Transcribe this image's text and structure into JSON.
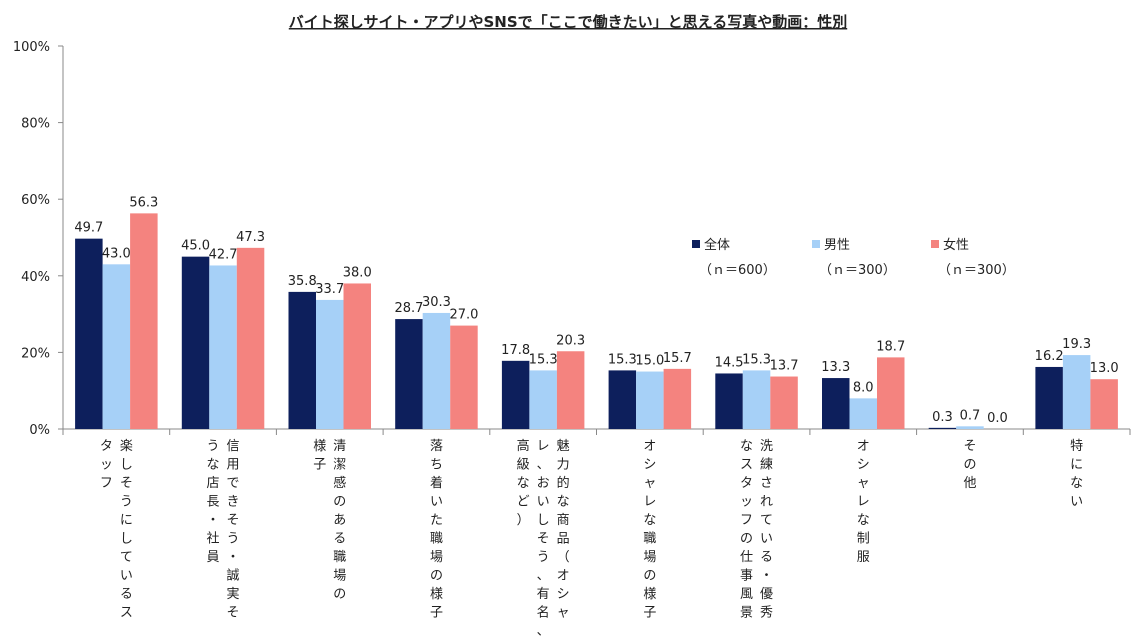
{
  "chart_data": {
    "type": "bar",
    "title": "バイト探しサイト・アプリやSNSで「ここで働きたい」と思える写真や動画：性別",
    "ylim": [
      0,
      100
    ],
    "y_ticks": [
      "0%",
      "20%",
      "40%",
      "60%",
      "80%",
      "100%"
    ],
    "xlabel": "",
    "ylabel": "",
    "categories": [
      [
        "楽しそうにしているス",
        "タッフ"
      ],
      [
        "信用できそう・誠実そ",
        "うな店長・社員"
      ],
      [
        "清潔感のある職場の",
        "様子"
      ],
      [
        "落ち着いた職場の様子"
      ],
      [
        "魅力的な商品（オシャ",
        "レ、おいしそう、有名、",
        "高級など）"
      ],
      [
        "オシャレな職場の様子"
      ],
      [
        "洗練されている・優秀",
        "なスタッフの仕事風景"
      ],
      [
        "オシャレな制服"
      ],
      [
        "その他"
      ],
      [
        "特にない"
      ]
    ],
    "series": [
      {
        "name": "全体",
        "n": "（ｎ＝600）",
        "color": "#0d1f5c",
        "values": [
          49.7,
          45.0,
          35.8,
          28.7,
          17.8,
          15.3,
          14.5,
          13.3,
          0.3,
          16.2
        ]
      },
      {
        "name": "男性",
        "n": "（ｎ＝300）",
        "color": "#a6d0f7",
        "values": [
          43.0,
          42.7,
          33.7,
          30.3,
          15.3,
          15.0,
          15.3,
          8.0,
          0.7,
          19.3
        ]
      },
      {
        "name": "女性",
        "n": "（ｎ＝300）",
        "color": "#f4837f",
        "values": [
          56.3,
          47.3,
          38.0,
          27.0,
          20.3,
          15.7,
          13.7,
          18.7,
          0.0,
          13.0
        ]
      }
    ],
    "legend_position": "right"
  }
}
